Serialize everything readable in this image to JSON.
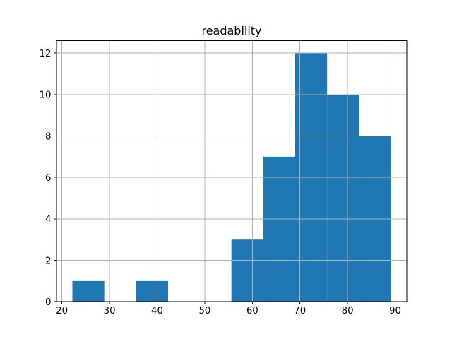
{
  "figure": {
    "background": "#ffffff"
  },
  "chart_data": {
    "type": "bar",
    "subtype": "histogram",
    "title": "readability",
    "xlabel": "",
    "ylabel": "",
    "bin_edges": [
      22.2,
      28.9,
      35.6,
      42.3,
      49.0,
      55.6,
      62.3,
      69.0,
      75.7,
      82.4,
      89.1
    ],
    "counts": [
      1,
      0,
      1,
      0,
      0,
      3,
      7,
      12,
      10,
      8
    ],
    "xticks": [
      20,
      30,
      40,
      50,
      60,
      70,
      80,
      90
    ],
    "yticks": [
      0,
      2,
      4,
      6,
      8,
      10,
      12
    ],
    "xlim": [
      18.86,
      92.44
    ],
    "ylim": [
      0,
      12.6
    ],
    "grid": true,
    "legend_position": "none",
    "bar_color": "#1f77b4",
    "grid_color": "#b0b0b0",
    "axis_color": "#000000",
    "tick_label_color": "#000000",
    "title_color": "#000000"
  }
}
